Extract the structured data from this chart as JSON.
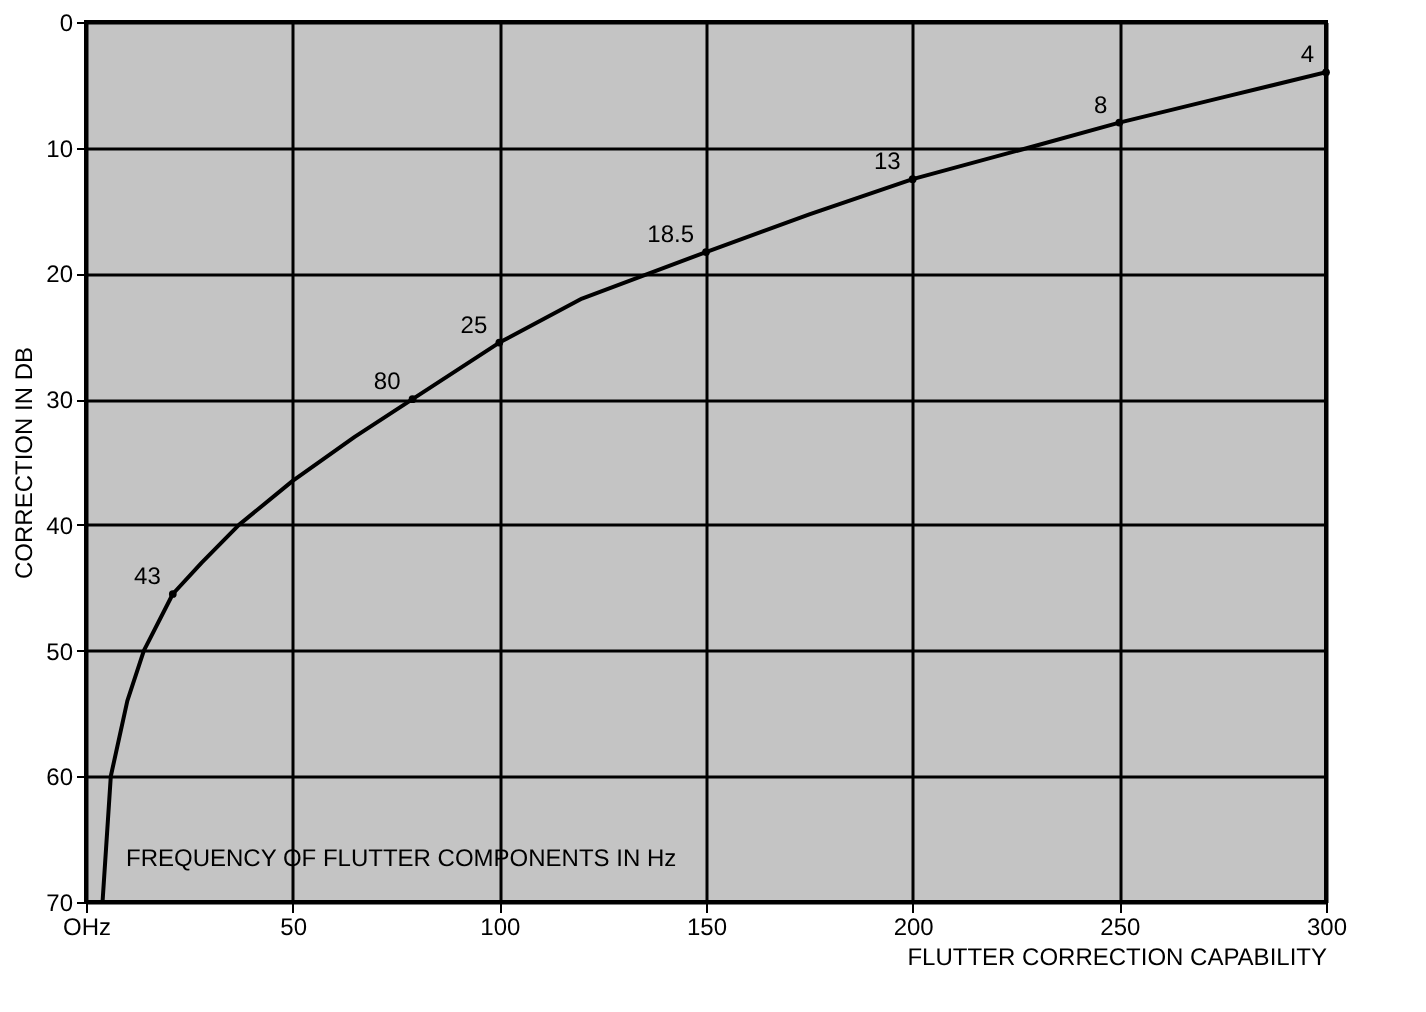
{
  "chart_data": {
    "type": "line",
    "xlabel": "FLUTTER CORRECTION CAPABILITY",
    "ylabel": "CORRECTION IN DB",
    "x": [
      4,
      6,
      10,
      14,
      21,
      28,
      37,
      50,
      65,
      79,
      100,
      120,
      150,
      175,
      200,
      228,
      250,
      275,
      300
    ],
    "series": [
      {
        "color": "#000000",
        "values": [
          70,
          60,
          54,
          50,
          45.5,
          43,
          40,
          36.5,
          33,
          30,
          25.5,
          22,
          18.3,
          15.3,
          12.5,
          10,
          8,
          6,
          4
        ]
      }
    ],
    "xlim": [
      0,
      300
    ],
    "xticks": [
      {
        "value": 0,
        "label": "OHz"
      },
      50,
      100,
      150,
      200,
      250,
      300
    ],
    "ylim": [
      70,
      0
    ],
    "yticks": [
      0,
      10,
      20,
      30,
      40,
      50,
      60,
      70
    ],
    "grid": true,
    "annotations": [
      {
        "text": "43",
        "x": 21,
        "y": 45.5
      },
      {
        "text": "80",
        "x": 79,
        "y": 30
      },
      {
        "text": "25",
        "x": 100,
        "y": 25.5
      },
      {
        "text": "18.5",
        "x": 150,
        "y": 18.3
      },
      {
        "text": "13",
        "x": 200,
        "y": 12.5
      },
      {
        "text": "8",
        "x": 250,
        "y": 8
      },
      {
        "text": "4",
        "x": 300,
        "y": 4
      },
      "FREQUENCY OF FLUTTER COMPONENTS IN Hz"
    ]
  }
}
